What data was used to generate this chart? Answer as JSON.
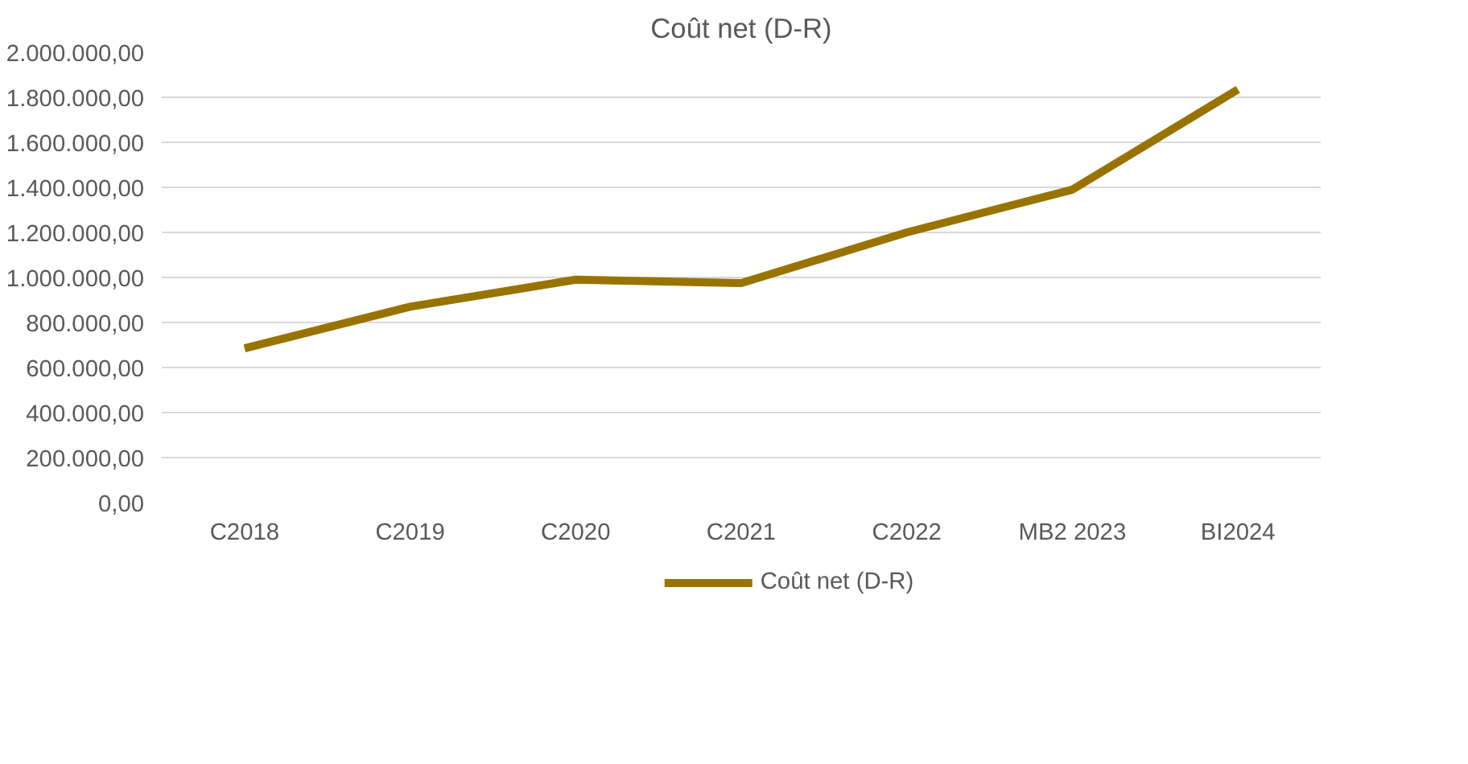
{
  "chart_data": {
    "type": "line",
    "title": "Coût net (D-R)",
    "categories": [
      "C2018",
      "C2019",
      "C2020",
      "C2021",
      "C2022",
      "MB2 2023",
      "BI2024"
    ],
    "series": [
      {
        "name": "Coût net (D-R)",
        "color": "#997300",
        "values": [
          685000,
          870000,
          990000,
          975000,
          1200000,
          1390000,
          1835000
        ]
      }
    ],
    "ylim": [
      0,
      2000000
    ],
    "yticks": [
      {
        "value": 0,
        "label": "0,00"
      },
      {
        "value": 200000,
        "label": "200.000,00"
      },
      {
        "value": 400000,
        "label": "400.000,00"
      },
      {
        "value": 600000,
        "label": "600.000,00"
      },
      {
        "value": 800000,
        "label": "800.000,00"
      },
      {
        "value": 1000000,
        "label": "1.000.000,00"
      },
      {
        "value": 1200000,
        "label": "1.200.000,00"
      },
      {
        "value": 1400000,
        "label": "1.400.000,00"
      },
      {
        "value": 1600000,
        "label": "1.600.000,00"
      },
      {
        "value": 1800000,
        "label": "1.800.000,00"
      },
      {
        "value": 2000000,
        "label": "2.000.000,00"
      }
    ],
    "grid": "y",
    "legend": "bottom",
    "marker": "none",
    "line_style": "solid"
  }
}
